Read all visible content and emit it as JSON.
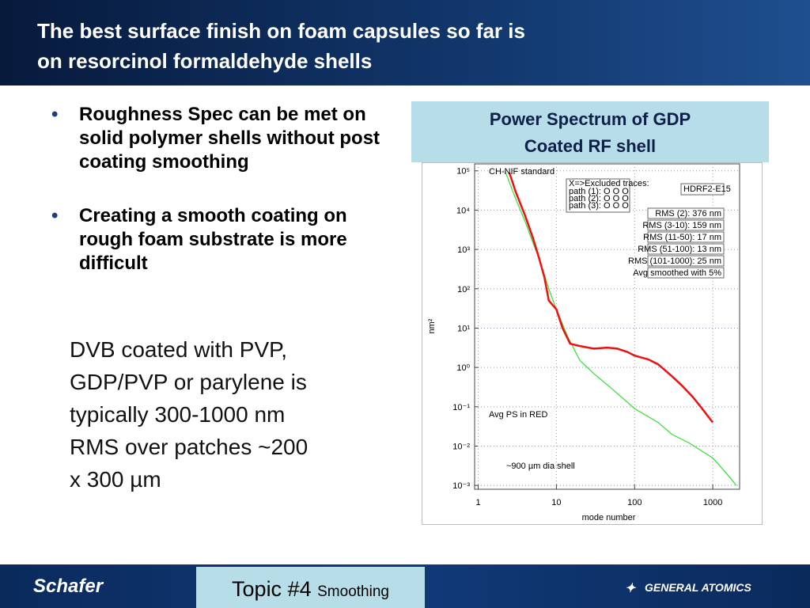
{
  "header": {
    "title_lines": [
      "The best surface finish on foam capsules so far is",
      "on resorcinol formaldehyde shells"
    ]
  },
  "bullets": [
    "Roughness Spec can be met on solid polymer shells without post coating smoothing",
    "Creating a smooth coating on rough foam substrate is more difficult"
  ],
  "paragraph_lines": [
    "DVB coated with PVP,",
    "GDP/PVP or parylene is",
    "typically 300-1000 nm",
    "RMS over patches ~200",
    "x 300 µm"
  ],
  "footer": {
    "logo_left": "Schafer",
    "topic": "Topic #4",
    "topic_sub": "Smoothing",
    "logo_right": "GENERAL ATOMICS"
  },
  "chart_data": {
    "type": "line",
    "title_lines": [
      "Power Spectrum of GDP",
      "Coated RF shell"
    ],
    "x_label": "mode number",
    "y_label": "nm²",
    "log_x": true,
    "log_y": true,
    "grid": true,
    "xlim": [
      0.9,
      2200
    ],
    "xticks": [
      1,
      10,
      100,
      1000
    ],
    "ylim": [
      0.0008,
      150000
    ],
    "yticks": [
      {
        "value": 0.001,
        "label": "10⁻³"
      },
      {
        "value": 0.01,
        "label": "10⁻²"
      },
      {
        "value": 0.1,
        "label": "10⁻¹"
      },
      {
        "value": 1,
        "label": "10⁰"
      },
      {
        "value": 10,
        "label": "10¹"
      },
      {
        "value": 100,
        "label": "10²"
      },
      {
        "value": 1000,
        "label": "10³"
      },
      {
        "value": 10000,
        "label": "10⁴"
      },
      {
        "value": 100000,
        "label": "10⁵"
      }
    ],
    "series": [
      {
        "color": "#33dd33",
        "x": [
          2.2,
          3,
          4,
          5,
          6,
          8,
          10,
          14,
          20,
          30,
          50,
          100,
          200,
          300,
          500,
          1000,
          1500,
          2000
        ],
        "values": [
          100000,
          20000,
          5000,
          1500,
          600,
          100,
          30,
          6,
          1.5,
          0.7,
          0.3,
          0.09,
          0.04,
          0.02,
          0.012,
          0.005,
          0.002,
          0.001
        ]
      },
      {
        "color": "#ee1111",
        "x": [
          2.5,
          3,
          4,
          5,
          6,
          7,
          8,
          10,
          12,
          15,
          20,
          30,
          45,
          60,
          80,
          100,
          150,
          200,
          300,
          400,
          550,
          700,
          850,
          1000
        ],
        "values": [
          90000,
          30000,
          7000,
          2000,
          600,
          200,
          50,
          30,
          10,
          4,
          3.5,
          3,
          3.2,
          3,
          2.5,
          2,
          1.6,
          1.2,
          0.6,
          0.35,
          0.18,
          0.1,
          0.06,
          0.04
        ]
      }
    ],
    "annotations": {
      "standard": "CH-NIF standard",
      "avg": "Avg PS in RED",
      "shell": "~900 µm dia shell",
      "sample": "HDRF2-E15"
    },
    "excluded": {
      "heading": "X=>Excluded traces:",
      "rows": [
        "path (1):   O   O   O",
        "path (2):   O   O   O",
        "path (3):   O   O   O"
      ]
    },
    "rms_labels": [
      "RMS (2): 376 nm",
      "RMS (3-10): 159 nm",
      "RMS (11-50): 17 nm",
      "RMS (51-100): 13 nm",
      "RMS (101-1000): 25 nm",
      "Avg smoothed with 5%"
    ]
  }
}
